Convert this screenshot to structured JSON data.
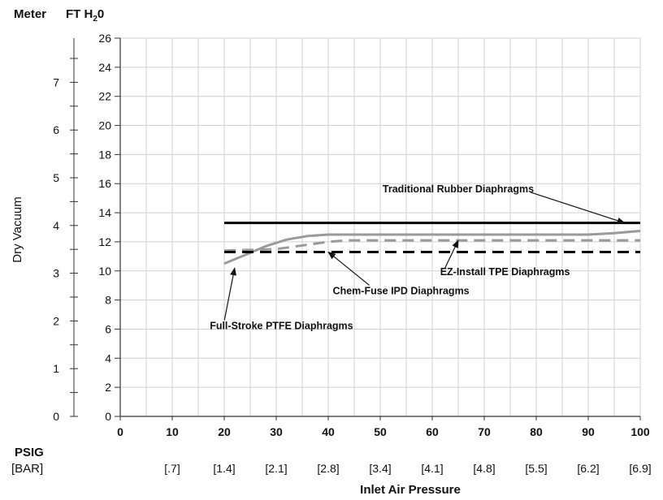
{
  "chart_data": {
    "type": "line",
    "units": {
      "left": "Meter",
      "right_prefix": "FT H",
      "right_sub": "2",
      "right_suffix": "0"
    },
    "ylabel": "Dry Vacuum",
    "xlabel": "Inlet Air Pressure",
    "x_unit_primary": "PSIG",
    "x_unit_secondary": "[BAR]",
    "xlim": [
      0,
      100
    ],
    "ylim": [
      0,
      26
    ],
    "x_ticks": [
      0,
      10,
      20,
      30,
      40,
      50,
      60,
      70,
      80,
      90,
      100
    ],
    "bar_ticks": [
      "[.7]",
      "[1.4]",
      "[2.1]",
      "[2.8]",
      "[3.4]",
      "[4.1]",
      "[4.8]",
      "[5.5]",
      "[6.2]",
      "[6.9]"
    ],
    "y_ticks": [
      0,
      2,
      4,
      6,
      8,
      10,
      12,
      14,
      16,
      18,
      20,
      22,
      24,
      26
    ],
    "meter_ticks": [
      "0",
      "1",
      "2",
      "3",
      "4",
      "5",
      "6",
      "7"
    ],
    "grid": true,
    "series": [
      {
        "name": "Traditional Rubber Diaphragms",
        "color": "#000000",
        "style": "solid",
        "points": [
          [
            20,
            13.3
          ],
          [
            100,
            13.3
          ]
        ]
      },
      {
        "name": "EZ-Install TPE Diaphragms",
        "color": "#9a9a9a",
        "style": "solid",
        "points": [
          [
            20,
            10.5
          ],
          [
            24,
            11.1
          ],
          [
            28,
            11.7
          ],
          [
            32,
            12.15
          ],
          [
            36,
            12.4
          ],
          [
            40,
            12.5
          ],
          [
            50,
            12.5
          ],
          [
            60,
            12.5
          ],
          [
            70,
            12.5
          ],
          [
            80,
            12.5
          ],
          [
            90,
            12.5
          ],
          [
            95,
            12.6
          ],
          [
            100,
            12.75
          ]
        ]
      },
      {
        "name": "Chem-Fuse IPD Diaphragms",
        "color": "#9a9a9a",
        "style": "dashed",
        "points": [
          [
            20,
            11.4
          ],
          [
            30,
            11.5
          ],
          [
            36,
            11.8
          ],
          [
            40,
            12.0
          ],
          [
            44,
            12.1
          ],
          [
            100,
            12.1
          ]
        ]
      },
      {
        "name": "Full-Stroke PTFE Diaphragms",
        "color": "#000000",
        "style": "dashed",
        "points": [
          [
            20,
            11.3
          ],
          [
            100,
            11.3
          ]
        ]
      }
    ],
    "annotations": [
      {
        "text": "Traditional Rubber Diaphragms",
        "x": 65,
        "y": 15.4,
        "arrow_to": [
          97,
          13.3
        ]
      },
      {
        "text": "EZ-Install TPE Diaphragms",
        "x": 74,
        "y": 9.7,
        "arrow_to": [
          65,
          12.1
        ]
      },
      {
        "text": "Chem-Fuse IPD Diaphragms",
        "x": 54,
        "y": 8.4,
        "arrow_to": [
          40,
          11.3
        ]
      },
      {
        "text": "Full-Stroke PTFE Diaphragms",
        "x": 31,
        "y": 6.0,
        "arrow_to": [
          22,
          10.2
        ]
      }
    ]
  }
}
